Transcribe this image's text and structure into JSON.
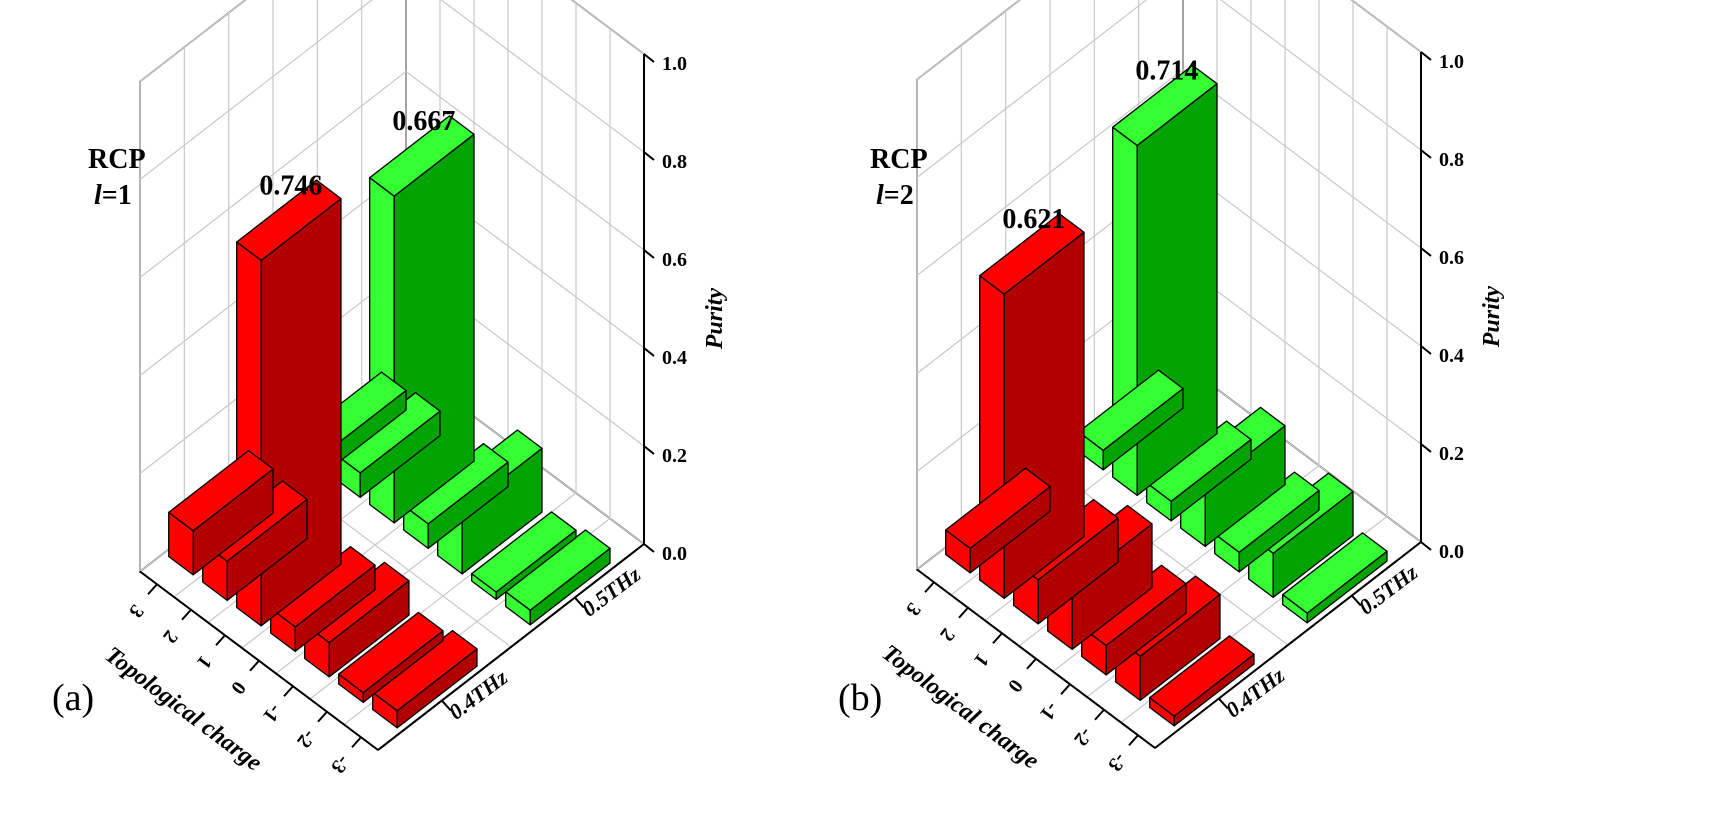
{
  "chart_data": [
    {
      "panel_tag": "(a)",
      "type": "bar3d",
      "annotation": [
        "RCP",
        "l",
        "=1"
      ],
      "zlabel": "Purity",
      "zlim": [
        0,
        1
      ],
      "z_ticks": [
        "0.0",
        "0.2",
        "0.4",
        "0.6",
        "0.8",
        "1.0"
      ],
      "xlabel": "Topological charge",
      "x_ticks": [
        "3",
        "2",
        "1",
        "0",
        "-1",
        "-2",
        "-3"
      ],
      "x": [
        -3,
        -2,
        -1,
        0,
        1,
        2,
        3
      ],
      "y_ticks": [
        "0.4THz",
        "0.5THz"
      ],
      "series": [
        {
          "name": "0.4THz",
          "color": "#ff0000",
          "side_color": "#b20000",
          "values": [
            0.09,
            0.08,
            0.746,
            0.05,
            0.07,
            0.02,
            0.035
          ],
          "value_labels": [
            "",
            "",
            "0.746",
            "",
            "",
            "",
            ""
          ]
        },
        {
          "name": "0.5THz",
          "color": "#33ff33",
          "side_color": "#00a300",
          "values": [
            0.04,
            0.05,
            0.667,
            0.05,
            0.13,
            0.015,
            0.03
          ],
          "value_labels": [
            "",
            "",
            "0.667",
            "",
            "",
            "",
            ""
          ]
        }
      ]
    },
    {
      "panel_tag": "(b)",
      "type": "bar3d",
      "annotation": [
        "RCP",
        "l",
        "=2"
      ],
      "zlabel": "Purity",
      "zlim": [
        0,
        1
      ],
      "z_ticks": [
        "0.0",
        "0.2",
        "0.4",
        "0.6",
        "0.8",
        "1.0"
      ],
      "xlabel": "Topological charge",
      "x_ticks": [
        "3",
        "2",
        "1",
        "0",
        "-1",
        "-2",
        "-3"
      ],
      "x": [
        -3,
        -2,
        -1,
        0,
        1,
        2,
        3
      ],
      "y_ticks": [
        "0.4THz",
        "0.5THz"
      ],
      "series": [
        {
          "name": "0.4THz",
          "color": "#ff0000",
          "side_color": "#b20000",
          "values": [
            0.05,
            0.621,
            0.09,
            0.13,
            0.06,
            0.09,
            0.02
          ],
          "value_labels": [
            "",
            "0.621",
            "",
            "",
            "",
            "",
            ""
          ]
        },
        {
          "name": "0.5THz",
          "color": "#33ff33",
          "side_color": "#00a300",
          "values": [
            0.04,
            0.714,
            0.04,
            0.12,
            0.04,
            0.09,
            0.02
          ],
          "value_labels": [
            "",
            "0.714",
            "",
            "",
            "",
            "",
            ""
          ]
        }
      ]
    }
  ]
}
